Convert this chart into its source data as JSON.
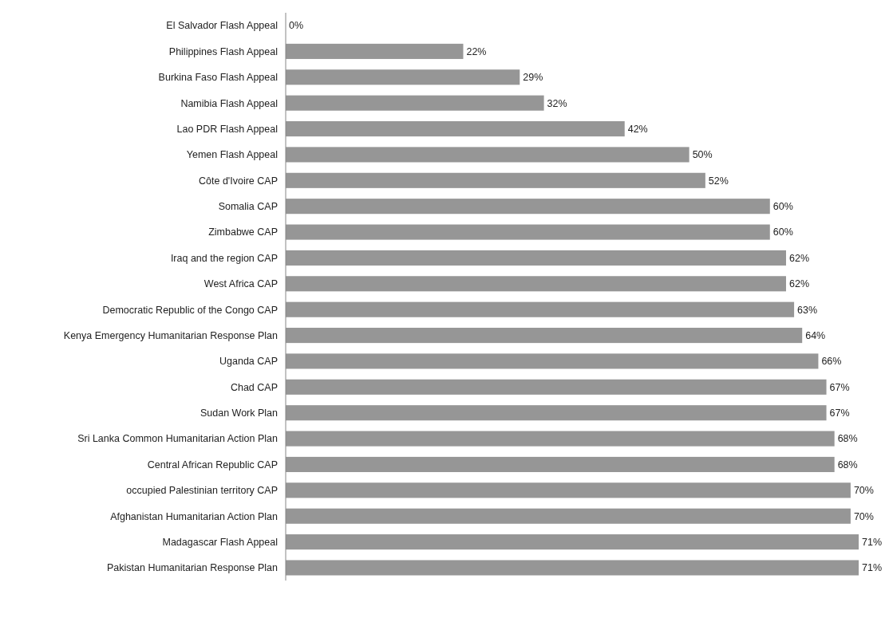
{
  "chart_data": {
    "type": "bar",
    "orientation": "horizontal",
    "categories": [
      "El Salvador Flash Appeal",
      "Philippines Flash Appeal",
      "Burkina Faso Flash Appeal",
      "Namibia Flash Appeal",
      "Lao PDR Flash Appeal",
      "Yemen Flash Appeal",
      "Côte d'Ivoire CAP",
      "Somalia CAP",
      "Zimbabwe CAP",
      "Iraq and the region CAP",
      "West Africa CAP",
      "Democratic Republic of the Congo CAP",
      "Kenya Emergency Humanitarian Response Plan",
      "Uganda CAP",
      "Chad CAP",
      "Sudan Work Plan",
      "Sri Lanka Common Humanitarian Action Plan",
      "Central African Republic CAP",
      "occupied Palestinian territory CAP",
      "Afghanistan Humanitarian Action Plan",
      "Madagascar Flash Appeal",
      "Pakistan Humanitarian Response Plan"
    ],
    "values": [
      0,
      22,
      29,
      32,
      42,
      50,
      52,
      60,
      60,
      62,
      62,
      63,
      64,
      66,
      67,
      67,
      68,
      68,
      70,
      70,
      71,
      71
    ],
    "value_labels": [
      "0%",
      "22%",
      "29%",
      "32%",
      "42%",
      "50%",
      "52%",
      "60%",
      "60%",
      "62%",
      "62%",
      "63%",
      "64%",
      "66%",
      "67%",
      "67%",
      "68%",
      "68%",
      "70%",
      "70%",
      "71%",
      "71%"
    ],
    "color": "#969696"
  }
}
